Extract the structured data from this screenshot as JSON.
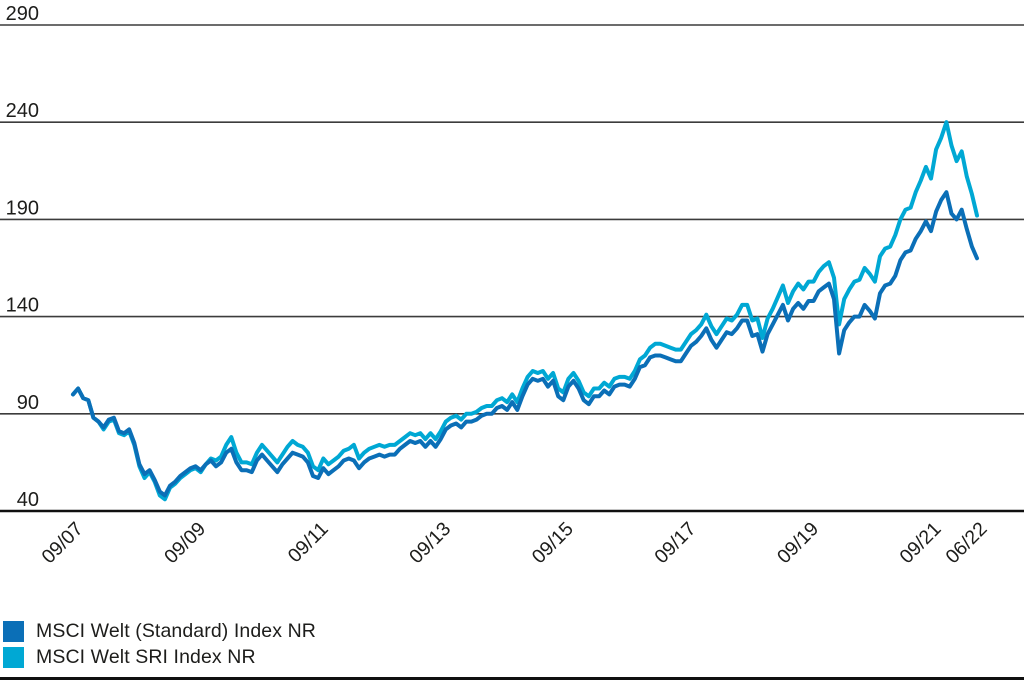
{
  "chart_data": {
    "type": "line",
    "title": "",
    "xlabel": "",
    "ylabel": "",
    "grid": true,
    "legend_position": "bottom-left",
    "ylim": [
      40,
      290
    ],
    "y_ticks": [
      290,
      240,
      190,
      140,
      90,
      40
    ],
    "x_tick_labels": [
      "09/07",
      "09/09",
      "09/11",
      "09/13",
      "09/15",
      "09/17",
      "09/19",
      "09/21",
      "06/22"
    ],
    "x_tick_months": [
      0,
      24,
      48,
      72,
      96,
      120,
      144,
      168,
      177
    ],
    "months_total": 177,
    "x_start_label": "09/07",
    "x_end_label": "06/22",
    "series": [
      {
        "name": "MSCI Welt (Standard) Index NR",
        "color": "#0b6fb7",
        "values": [
          100,
          103,
          98,
          97,
          88,
          86,
          83,
          87,
          88,
          81,
          80,
          82,
          75,
          64,
          59,
          61,
          56,
          50,
          48,
          53,
          55,
          58,
          60,
          62,
          63,
          61,
          64,
          66,
          63,
          65,
          70,
          72,
          65,
          61,
          61,
          60,
          66,
          69,
          66,
          63,
          60,
          64,
          67,
          70,
          69,
          68,
          65,
          58,
          57,
          62,
          59,
          61,
          63,
          66,
          67,
          66,
          62,
          65,
          67,
          68,
          69,
          68,
          69,
          69,
          72,
          74,
          76,
          75,
          76,
          73,
          76,
          73,
          77,
          82,
          84,
          85,
          83,
          86,
          86,
          87,
          89,
          90,
          90,
          93,
          94,
          92,
          96,
          92,
          99,
          105,
          108,
          107,
          108,
          104,
          107,
          99,
          97,
          104,
          107,
          103,
          97,
          95,
          99,
          99,
          102,
          100,
          104,
          105,
          105,
          104,
          108,
          114,
          115,
          119,
          120,
          120,
          119,
          118,
          117,
          117,
          121,
          125,
          127,
          130,
          134,
          128,
          124,
          128,
          132,
          131,
          134,
          138,
          138,
          130,
          131,
          122,
          131,
          136,
          141,
          146,
          138,
          144,
          147,
          144,
          148,
          148,
          153,
          155,
          157,
          149,
          121,
          133,
          137,
          140,
          140,
          146,
          143,
          139,
          152,
          156,
          157,
          161,
          169,
          173,
          174,
          180,
          184,
          189,
          184,
          194,
          200,
          204,
          193,
          190,
          195,
          185,
          176,
          170
        ]
      },
      {
        "name": "MSCI Welt SRI Index NR",
        "color": "#00a8d4",
        "values": [
          100,
          103,
          98,
          97,
          88,
          86,
          82,
          86,
          87,
          80,
          79,
          81,
          74,
          63,
          57,
          60,
          55,
          48,
          46,
          52,
          54,
          57,
          59,
          61,
          62,
          60,
          64,
          67,
          66,
          68,
          74,
          78,
          70,
          65,
          65,
          64,
          70,
          74,
          71,
          68,
          65,
          69,
          73,
          76,
          74,
          73,
          70,
          63,
          61,
          67,
          64,
          66,
          68,
          71,
          72,
          74,
          67,
          70,
          72,
          73,
          74,
          73,
          74,
          74,
          76,
          78,
          80,
          79,
          80,
          77,
          80,
          77,
          81,
          86,
          88,
          89,
          87,
          90,
          90,
          91,
          93,
          94,
          94,
          97,
          98,
          96,
          100,
          96,
          103,
          109,
          112,
          111,
          112,
          108,
          111,
          103,
          101,
          108,
          111,
          107,
          101,
          99,
          103,
          103,
          106,
          104,
          108,
          109,
          109,
          108,
          112,
          118,
          120,
          124,
          126,
          126,
          125,
          124,
          123,
          123,
          127,
          131,
          133,
          136,
          141,
          135,
          131,
          135,
          139,
          138,
          141,
          146,
          146,
          138,
          139,
          129,
          139,
          144,
          150,
          156,
          147,
          153,
          157,
          154,
          158,
          158,
          163,
          166,
          168,
          160,
          136,
          149,
          154,
          158,
          159,
          165,
          162,
          158,
          171,
          175,
          176,
          182,
          190,
          195,
          196,
          204,
          210,
          217,
          211,
          226,
          232,
          240,
          228,
          220,
          225,
          212,
          203,
          192
        ]
      }
    ]
  },
  "styles": {
    "gridline_color": "#3c3c3c",
    "axisline_color": "#101010",
    "tick_label_color": "#1d1d1b",
    "background": "#ffffff"
  },
  "legend": {
    "items": [
      {
        "label": "MSCI Welt (Standard) Index NR"
      },
      {
        "label": "MSCI Welt SRI Index NR"
      }
    ]
  }
}
